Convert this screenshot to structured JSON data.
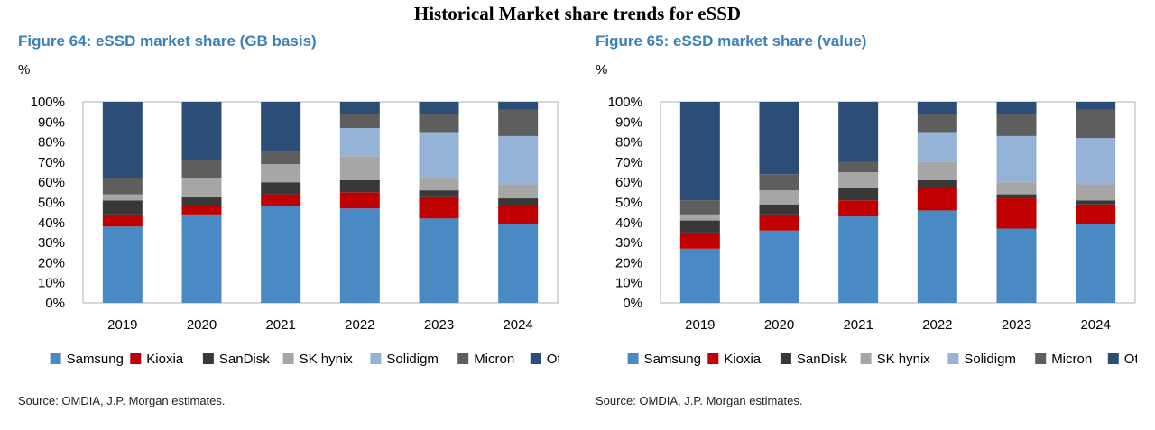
{
  "page_title": "Historical Market share trends for eSSD",
  "colors": {
    "Samsung": "#4a8ac4",
    "Kioxia": "#c00000",
    "SanDisk": "#383838",
    "SK hynix": "#a6a6a6",
    "Solidigm": "#95b3d7",
    "Micron": "#5e5e5e",
    "Others": "#2c4d75"
  },
  "chart_data": [
    {
      "type": "bar",
      "stacked": true,
      "title": "Figure 64: eSSD market share (GB basis)",
      "unit_label": "%",
      "categories": [
        "2019",
        "2020",
        "2021",
        "2022",
        "2023",
        "2024"
      ],
      "ylim": [
        0,
        100
      ],
      "yticks": [
        "0%",
        "10%",
        "20%",
        "30%",
        "40%",
        "50%",
        "60%",
        "70%",
        "80%",
        "90%",
        "100%"
      ],
      "legend_position": "bottom",
      "series": [
        {
          "name": "Samsung",
          "values": [
            38,
            44,
            48,
            47,
            42,
            39
          ]
        },
        {
          "name": "Kioxia",
          "values": [
            6,
            4,
            6,
            8,
            11,
            9
          ]
        },
        {
          "name": "SanDisk",
          "values": [
            7,
            5,
            6,
            6,
            3,
            4
          ]
        },
        {
          "name": "SK hynix",
          "values": [
            3,
            9,
            9,
            12,
            6,
            7
          ]
        },
        {
          "name": "Solidigm",
          "values": [
            0,
            0,
            0,
            14,
            23,
            24
          ]
        },
        {
          "name": "Micron",
          "values": [
            8,
            9,
            6,
            7,
            9,
            13
          ]
        },
        {
          "name": "Others",
          "values": [
            38,
            29,
            25,
            6,
            6,
            4
          ]
        }
      ],
      "source": "Source: OMDIA, J.P. Morgan estimates."
    },
    {
      "type": "bar",
      "stacked": true,
      "title": "Figure 65: eSSD market share (value)",
      "unit_label": "%",
      "categories": [
        "2019",
        "2020",
        "2021",
        "2022",
        "2023",
        "2024"
      ],
      "ylim": [
        0,
        100
      ],
      "yticks": [
        "0%",
        "10%",
        "20%",
        "30%",
        "40%",
        "50%",
        "60%",
        "70%",
        "80%",
        "90%",
        "100%"
      ],
      "legend_position": "bottom",
      "series": [
        {
          "name": "Samsung",
          "values": [
            27,
            36,
            43,
            46,
            37,
            39
          ]
        },
        {
          "name": "Kioxia",
          "values": [
            8,
            8,
            8,
            11,
            15,
            10
          ]
        },
        {
          "name": "SanDisk",
          "values": [
            6,
            5,
            6,
            4,
            2,
            2
          ]
        },
        {
          "name": "SK hynix",
          "values": [
            3,
            7,
            8,
            9,
            6,
            8
          ]
        },
        {
          "name": "Solidigm",
          "values": [
            0,
            0,
            0,
            15,
            23,
            23
          ]
        },
        {
          "name": "Micron",
          "values": [
            7,
            8,
            5,
            9,
            11,
            14
          ]
        },
        {
          "name": "Others",
          "values": [
            49,
            36,
            30,
            6,
            6,
            4
          ]
        }
      ],
      "source": "Source: OMDIA, J.P. Morgan estimates."
    }
  ]
}
